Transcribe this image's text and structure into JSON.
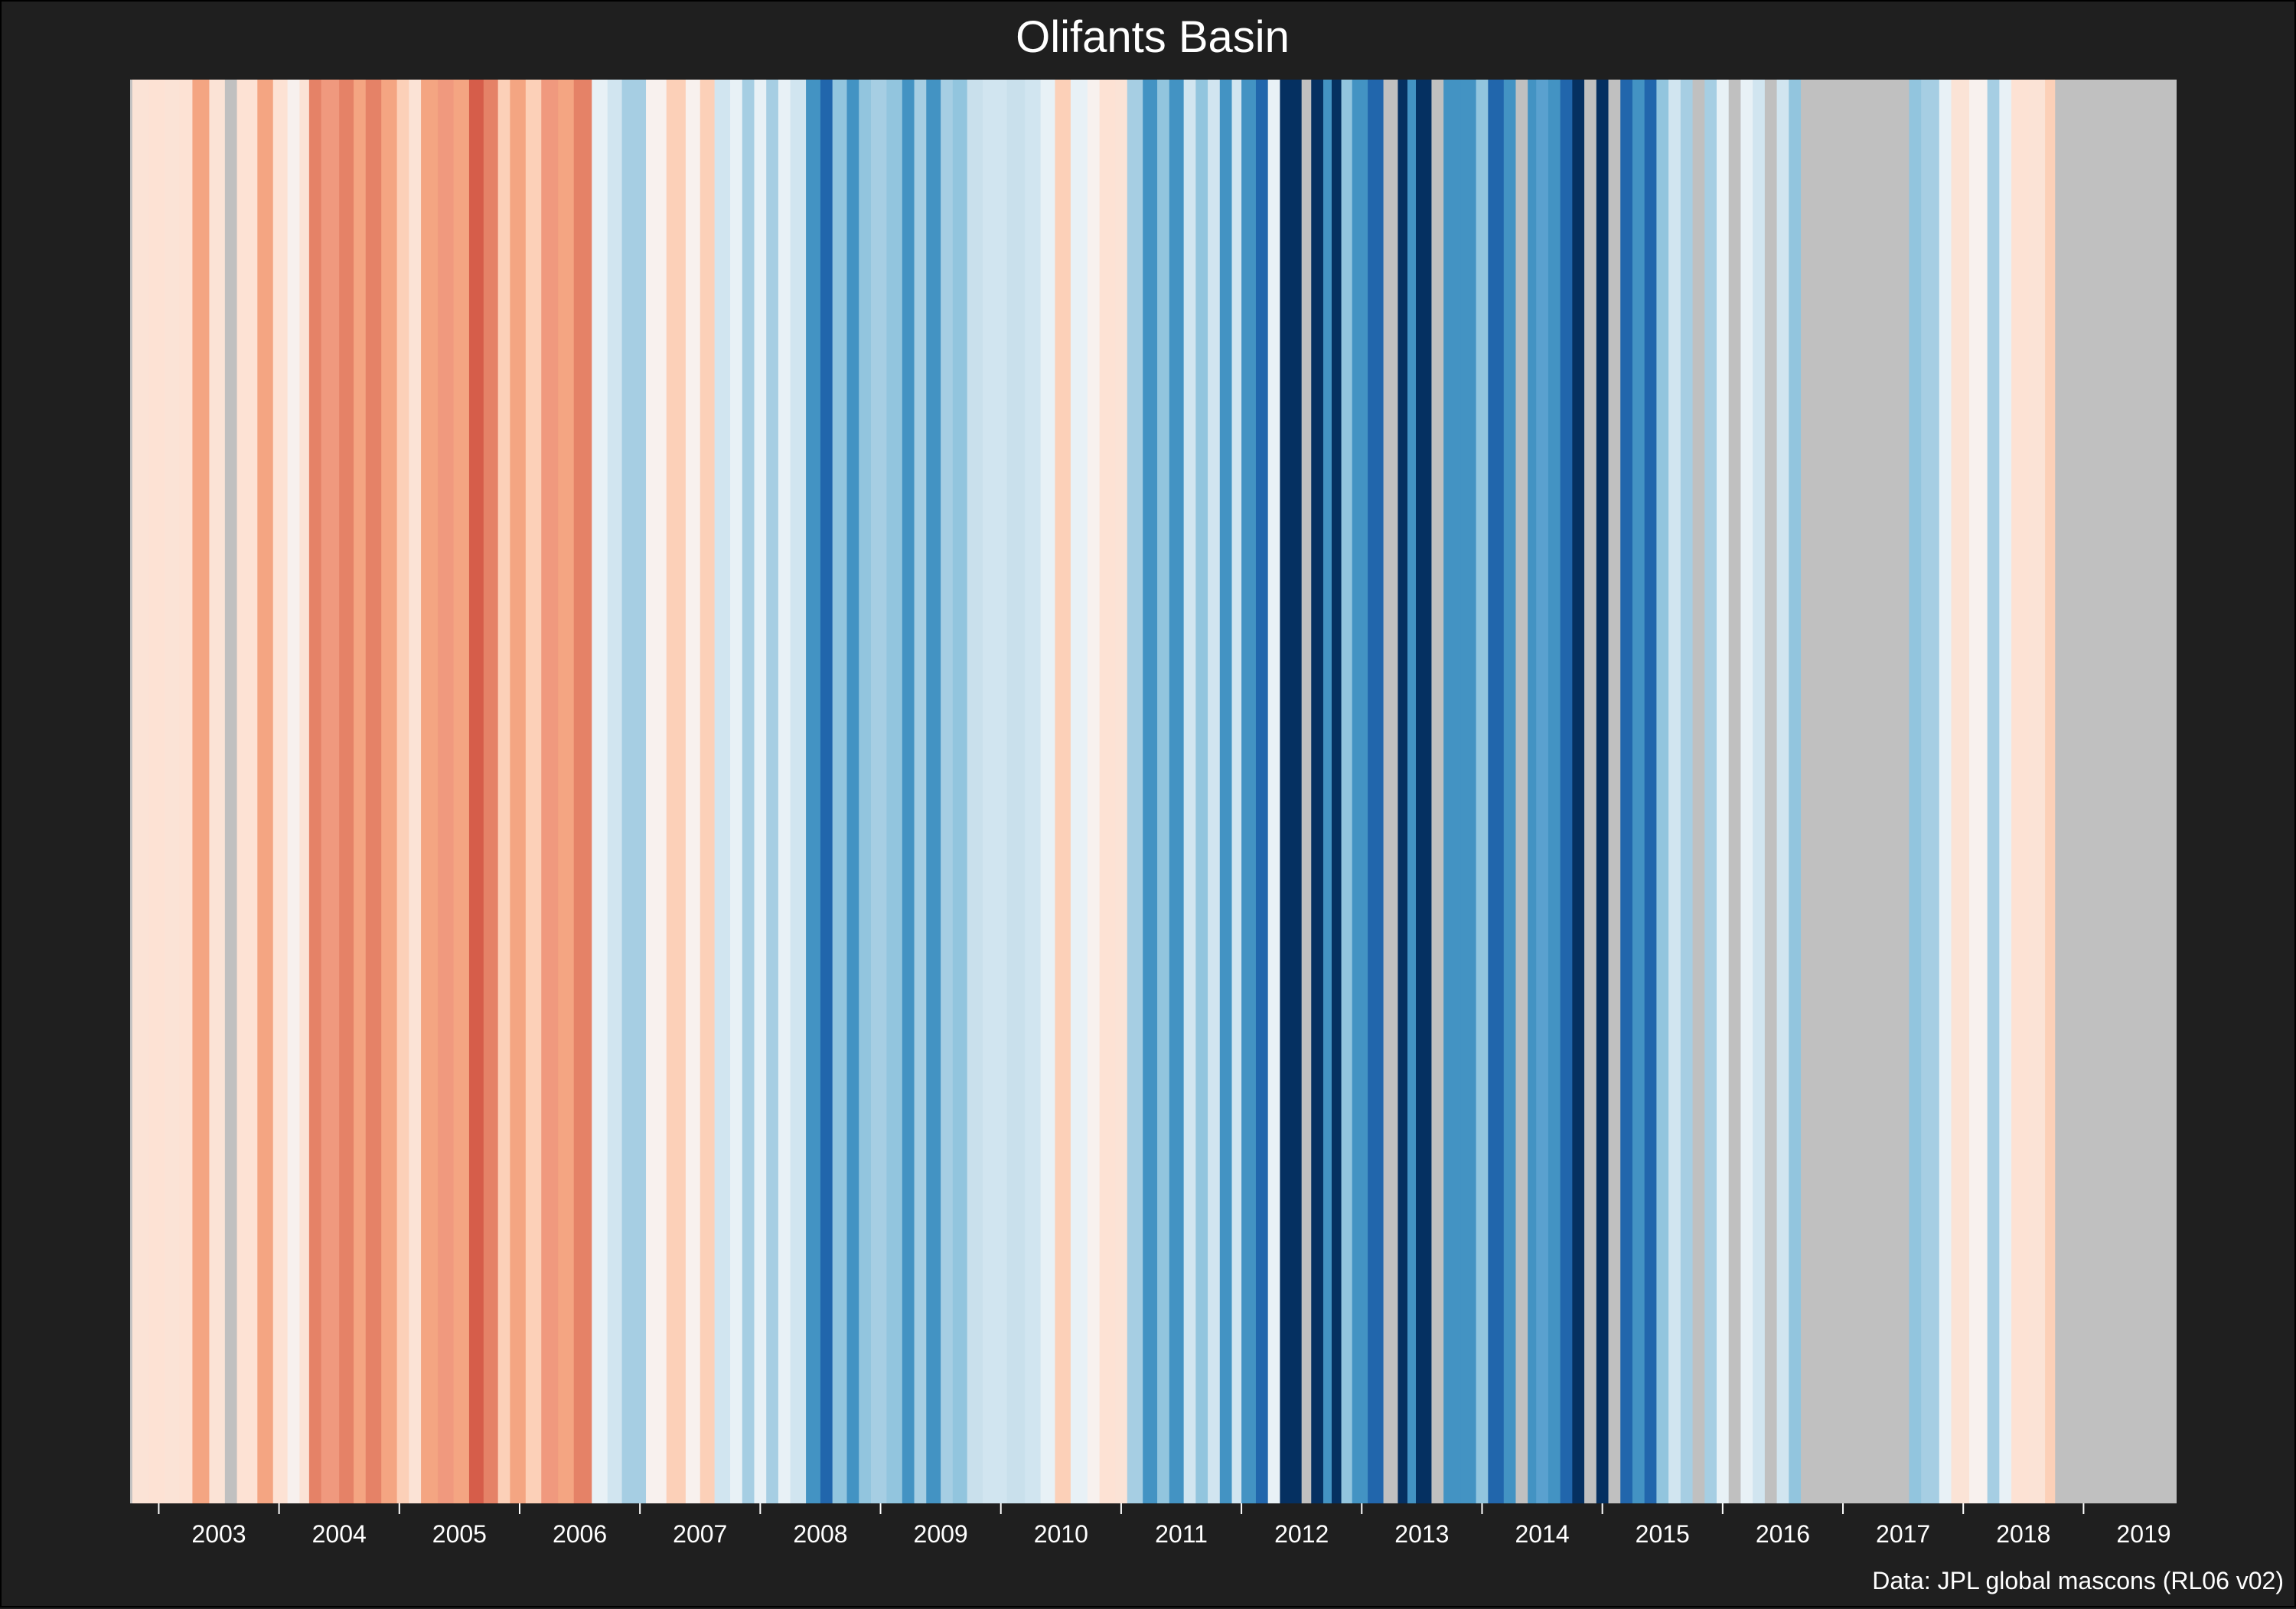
{
  "chart_data": {
    "type": "heatmap",
    "title": "Olifants Basin",
    "caption": "Data: JPL global mascons (RL06 v02)",
    "xlabel": "",
    "ylabel": "",
    "xlim": [
      2002.0,
      2020.25
    ],
    "stripe_width_years": 0.08333,
    "missing_color": "#c0c0c0",
    "ticks": [
      {
        "year": 2003,
        "label": "2003"
      },
      {
        "year": 2004,
        "label": "2004"
      },
      {
        "year": 2005,
        "label": "2005"
      },
      {
        "year": 2006,
        "label": "2006"
      },
      {
        "year": 2007,
        "label": "2007"
      },
      {
        "year": 2008,
        "label": "2008"
      },
      {
        "year": 2009,
        "label": "2009"
      },
      {
        "year": 2010,
        "label": "2010"
      },
      {
        "year": 2011,
        "label": "2011"
      },
      {
        "year": 2012,
        "label": "2012"
      },
      {
        "year": 2013,
        "label": "2013"
      },
      {
        "year": 2014,
        "label": "2014"
      },
      {
        "year": 2015,
        "label": "2015"
      },
      {
        "year": 2016,
        "label": "2016"
      },
      {
        "year": 2017,
        "label": "2017"
      },
      {
        "year": 2018,
        "label": "2018"
      },
      {
        "year": 2019,
        "label": "2019"
      }
    ],
    "stripes": [
      {
        "start": 2002.05,
        "end": 2002.14,
        "color": "#f4a582"
      },
      {
        "start": 2002.14,
        "end": 2002.28,
        "color": "#c0c0c0"
      },
      {
        "start": 2002.28,
        "end": 2002.42,
        "color": "#fbe3d6"
      },
      {
        "start": 2002.42,
        "end": 2002.55,
        "color": "#fde2d4"
      },
      {
        "start": 2002.55,
        "end": 2002.67,
        "color": "#fbe3d6"
      },
      {
        "start": 2002.67,
        "end": 2002.78,
        "color": "#fde2d4"
      },
      {
        "start": 2002.78,
        "end": 2002.92,
        "color": "#f4a582"
      },
      {
        "start": 2002.92,
        "end": 2003.05,
        "color": "#fbe3d6"
      },
      {
        "start": 2003.05,
        "end": 2003.15,
        "color": "#c0c0c0"
      },
      {
        "start": 2003.15,
        "end": 2003.32,
        "color": "#fde2d4"
      },
      {
        "start": 2003.32,
        "end": 2003.45,
        "color": "#f4a582"
      },
      {
        "start": 2003.45,
        "end": 2003.57,
        "color": "#fde2d4"
      },
      {
        "start": 2003.57,
        "end": 2003.67,
        "color": "#f7f0ee"
      },
      {
        "start": 2003.67,
        "end": 2003.75,
        "color": "#fbe3d6"
      },
      {
        "start": 2003.75,
        "end": 2003.85,
        "color": "#e58267"
      },
      {
        "start": 2003.85,
        "end": 2004.0,
        "color": "#f0997e"
      },
      {
        "start": 2004.0,
        "end": 2004.12,
        "color": "#e58267"
      },
      {
        "start": 2004.12,
        "end": 2004.22,
        "color": "#f4a582"
      },
      {
        "start": 2004.22,
        "end": 2004.35,
        "color": "#e58267"
      },
      {
        "start": 2004.35,
        "end": 2004.48,
        "color": "#f4a582"
      },
      {
        "start": 2004.48,
        "end": 2004.58,
        "color": "#fcd0b8"
      },
      {
        "start": 2004.58,
        "end": 2004.68,
        "color": "#fbe3d6"
      },
      {
        "start": 2004.68,
        "end": 2004.82,
        "color": "#f4a582"
      },
      {
        "start": 2004.82,
        "end": 2004.95,
        "color": "#f0997e"
      },
      {
        "start": 2004.95,
        "end": 2005.08,
        "color": "#f4a582"
      },
      {
        "start": 2005.08,
        "end": 2005.2,
        "color": "#d65d4a"
      },
      {
        "start": 2005.2,
        "end": 2005.32,
        "color": "#e58267"
      },
      {
        "start": 2005.32,
        "end": 2005.42,
        "color": "#fcd0b8"
      },
      {
        "start": 2005.42,
        "end": 2005.55,
        "color": "#f4a582"
      },
      {
        "start": 2005.55,
        "end": 2005.68,
        "color": "#fcd0b8"
      },
      {
        "start": 2005.68,
        "end": 2005.82,
        "color": "#f0997e"
      },
      {
        "start": 2005.82,
        "end": 2005.95,
        "color": "#f4a582"
      },
      {
        "start": 2005.95,
        "end": 2006.1,
        "color": "#e58267"
      },
      {
        "start": 2006.1,
        "end": 2006.23,
        "color": "#e8f1f6"
      },
      {
        "start": 2006.23,
        "end": 2006.35,
        "color": "#d1e5f0"
      },
      {
        "start": 2006.35,
        "end": 2006.55,
        "color": "#a6cee3"
      },
      {
        "start": 2006.55,
        "end": 2006.72,
        "color": "#f8f1ee"
      },
      {
        "start": 2006.72,
        "end": 2006.88,
        "color": "#fcd0b8"
      },
      {
        "start": 2006.88,
        "end": 2007.0,
        "color": "#f8f1ee"
      },
      {
        "start": 2007.0,
        "end": 2007.12,
        "color": "#fcd0b8"
      },
      {
        "start": 2007.12,
        "end": 2007.25,
        "color": "#d1e5f0"
      },
      {
        "start": 2007.25,
        "end": 2007.35,
        "color": "#e8f1f6"
      },
      {
        "start": 2007.35,
        "end": 2007.45,
        "color": "#a6cee3"
      },
      {
        "start": 2007.45,
        "end": 2007.55,
        "color": "#e8f1f6"
      },
      {
        "start": 2007.55,
        "end": 2007.65,
        "color": "#a6cee3"
      },
      {
        "start": 2007.65,
        "end": 2007.75,
        "color": "#e8f1f6"
      },
      {
        "start": 2007.75,
        "end": 2007.88,
        "color": "#d1e5f0"
      },
      {
        "start": 2007.88,
        "end": 2008.0,
        "color": "#4393c3"
      },
      {
        "start": 2008.0,
        "end": 2008.1,
        "color": "#2166ac"
      },
      {
        "start": 2008.1,
        "end": 2008.22,
        "color": "#92c5de"
      },
      {
        "start": 2008.22,
        "end": 2008.32,
        "color": "#4393c3"
      },
      {
        "start": 2008.32,
        "end": 2008.42,
        "color": "#92c5de"
      },
      {
        "start": 2008.42,
        "end": 2008.55,
        "color": "#a6cee3"
      },
      {
        "start": 2008.55,
        "end": 2008.68,
        "color": "#92c5de"
      },
      {
        "start": 2008.68,
        "end": 2008.78,
        "color": "#4393c3"
      },
      {
        "start": 2008.78,
        "end": 2008.88,
        "color": "#a6cee3"
      },
      {
        "start": 2008.88,
        "end": 2009.0,
        "color": "#4393c3"
      },
      {
        "start": 2009.0,
        "end": 2009.1,
        "color": "#a6cee3"
      },
      {
        "start": 2009.1,
        "end": 2009.22,
        "color": "#92c5de"
      },
      {
        "start": 2009.22,
        "end": 2009.35,
        "color": "#c9e0ec"
      },
      {
        "start": 2009.35,
        "end": 2009.55,
        "color": "#d1e5f0"
      },
      {
        "start": 2009.55,
        "end": 2009.7,
        "color": "#c9e0ec"
      },
      {
        "start": 2009.7,
        "end": 2009.83,
        "color": "#d1e5f0"
      },
      {
        "start": 2009.83,
        "end": 2009.95,
        "color": "#e8f1f6"
      },
      {
        "start": 2009.95,
        "end": 2010.08,
        "color": "#fcd0b8"
      },
      {
        "start": 2010.08,
        "end": 2010.22,
        "color": "#e8f1f6"
      },
      {
        "start": 2010.22,
        "end": 2010.32,
        "color": "#f8f1ee"
      },
      {
        "start": 2010.32,
        "end": 2010.45,
        "color": "#fde2d4"
      },
      {
        "start": 2010.45,
        "end": 2010.55,
        "color": "#fbe3d6"
      },
      {
        "start": 2010.55,
        "end": 2010.68,
        "color": "#a6cee3"
      },
      {
        "start": 2010.68,
        "end": 2010.8,
        "color": "#4393c3"
      },
      {
        "start": 2010.8,
        "end": 2010.9,
        "color": "#92c5de"
      },
      {
        "start": 2010.9,
        "end": 2011.02,
        "color": "#4393c3"
      },
      {
        "start": 2011.02,
        "end": 2011.12,
        "color": "#d1e5f0"
      },
      {
        "start": 2011.12,
        "end": 2011.22,
        "color": "#92c5de"
      },
      {
        "start": 2011.22,
        "end": 2011.32,
        "color": "#d1e5f0"
      },
      {
        "start": 2011.32,
        "end": 2011.42,
        "color": "#4393c3"
      },
      {
        "start": 2011.42,
        "end": 2011.5,
        "color": "#d1e5f0"
      },
      {
        "start": 2011.5,
        "end": 2011.62,
        "color": "#4393c3"
      },
      {
        "start": 2011.62,
        "end": 2011.72,
        "color": "#2166ac"
      },
      {
        "start": 2011.72,
        "end": 2011.82,
        "color": "#e8f1f6"
      },
      {
        "start": 2011.82,
        "end": 2012.0,
        "color": "#053061"
      },
      {
        "start": 2012.0,
        "end": 2012.08,
        "color": "#c0c0c0"
      },
      {
        "start": 2012.08,
        "end": 2012.18,
        "color": "#053061"
      },
      {
        "start": 2012.18,
        "end": 2012.25,
        "color": "#4393c3"
      },
      {
        "start": 2012.25,
        "end": 2012.33,
        "color": "#053061"
      },
      {
        "start": 2012.33,
        "end": 2012.42,
        "color": "#92c5de"
      },
      {
        "start": 2012.42,
        "end": 2012.55,
        "color": "#4393c3"
      },
      {
        "start": 2012.55,
        "end": 2012.68,
        "color": "#2166ac"
      },
      {
        "start": 2012.68,
        "end": 2012.8,
        "color": "#c0c0c0"
      },
      {
        "start": 2012.8,
        "end": 2012.88,
        "color": "#053061"
      },
      {
        "start": 2012.88,
        "end": 2012.95,
        "color": "#4393c3"
      },
      {
        "start": 2012.95,
        "end": 2013.08,
        "color": "#053061"
      },
      {
        "start": 2013.08,
        "end": 2013.18,
        "color": "#c0c0c0"
      },
      {
        "start": 2013.18,
        "end": 2013.32,
        "color": "#4393c3"
      },
      {
        "start": 2013.32,
        "end": 2013.45,
        "color": "#4393c3"
      },
      {
        "start": 2013.45,
        "end": 2013.55,
        "color": "#92c5de"
      },
      {
        "start": 2013.55,
        "end": 2013.68,
        "color": "#2166ac"
      },
      {
        "start": 2013.68,
        "end": 2013.78,
        "color": "#4393c3"
      },
      {
        "start": 2013.78,
        "end": 2013.88,
        "color": "#c0c0c0"
      },
      {
        "start": 2013.88,
        "end": 2013.95,
        "color": "#4393c3"
      },
      {
        "start": 2013.95,
        "end": 2014.05,
        "color": "#5aa1cf"
      },
      {
        "start": 2014.05,
        "end": 2014.15,
        "color": "#4393c3"
      },
      {
        "start": 2014.15,
        "end": 2014.25,
        "color": "#2166ac"
      },
      {
        "start": 2014.25,
        "end": 2014.35,
        "color": "#053061"
      },
      {
        "start": 2014.35,
        "end": 2014.45,
        "color": "#c0c0c0"
      },
      {
        "start": 2014.45,
        "end": 2014.55,
        "color": "#053061"
      },
      {
        "start": 2014.55,
        "end": 2014.65,
        "color": "#c0c0c0"
      },
      {
        "start": 2014.65,
        "end": 2014.75,
        "color": "#2166ac"
      },
      {
        "start": 2014.75,
        "end": 2014.85,
        "color": "#4393c3"
      },
      {
        "start": 2014.85,
        "end": 2014.95,
        "color": "#2166ac"
      },
      {
        "start": 2014.95,
        "end": 2015.05,
        "color": "#92c5de"
      },
      {
        "start": 2015.05,
        "end": 2015.15,
        "color": "#d1e5f0"
      },
      {
        "start": 2015.15,
        "end": 2015.25,
        "color": "#a6cee3"
      },
      {
        "start": 2015.25,
        "end": 2015.35,
        "color": "#c0c0c0"
      },
      {
        "start": 2015.35,
        "end": 2015.45,
        "color": "#a6cee3"
      },
      {
        "start": 2015.45,
        "end": 2015.55,
        "color": "#e8f1f6"
      },
      {
        "start": 2015.55,
        "end": 2015.65,
        "color": "#c0c0c0"
      },
      {
        "start": 2015.65,
        "end": 2015.75,
        "color": "#e8f1f6"
      },
      {
        "start": 2015.75,
        "end": 2015.85,
        "color": "#d1e5f0"
      },
      {
        "start": 2015.85,
        "end": 2015.95,
        "color": "#c0c0c0"
      },
      {
        "start": 2015.95,
        "end": 2016.05,
        "color": "#d1e5f0"
      },
      {
        "start": 2016.05,
        "end": 2016.15,
        "color": "#92c5de"
      },
      {
        "start": 2016.15,
        "end": 2017.05,
        "color": "#c0c0c0"
      },
      {
        "start": 2017.05,
        "end": 2017.15,
        "color": "#92c5de"
      },
      {
        "start": 2017.15,
        "end": 2017.3,
        "color": "#a6cee3"
      },
      {
        "start": 2017.3,
        "end": 2017.4,
        "color": "#e8f1f6"
      },
      {
        "start": 2017.4,
        "end": 2017.55,
        "color": "#fbe3d6"
      },
      {
        "start": 2017.55,
        "end": 2017.7,
        "color": "#f8f1ee"
      },
      {
        "start": 2017.7,
        "end": 2017.8,
        "color": "#a6cee3"
      },
      {
        "start": 2017.8,
        "end": 2017.9,
        "color": "#e8f1f6"
      },
      {
        "start": 2017.9,
        "end": 2018.05,
        "color": "#fde2d4"
      },
      {
        "start": 2018.05,
        "end": 2018.18,
        "color": "#fbe3d6"
      },
      {
        "start": 2018.18,
        "end": 2018.26,
        "color": "#fcd0b8"
      }
    ]
  }
}
